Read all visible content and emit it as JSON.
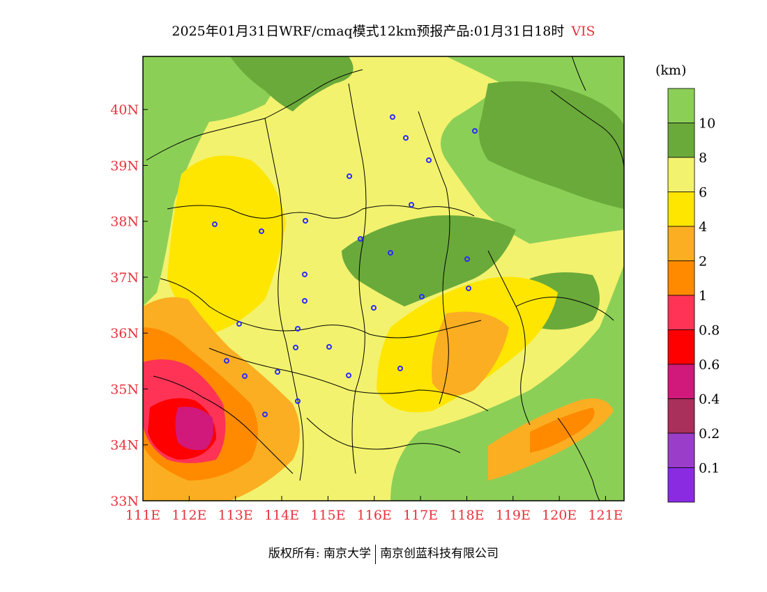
{
  "header": {
    "title": "2025年01月31日WRF/cmaq模式12km预报产品:01月31日18时",
    "variable": "VIS"
  },
  "map": {
    "lon_ticks": [
      "111E",
      "112E",
      "113E",
      "114E",
      "115E",
      "116E",
      "117E",
      "118E",
      "119E",
      "120E",
      "121E"
    ],
    "lat_ticks": [
      "33N",
      "34N",
      "35N",
      "36N",
      "37N",
      "38N",
      "39N",
      "40N"
    ],
    "lon_range": [
      111,
      121.4
    ],
    "lat_range": [
      33,
      40.95
    ]
  },
  "colorbar": {
    "unit": "(km)",
    "labels": [
      "10",
      "8",
      "6",
      "4",
      "2",
      "1",
      "0.8",
      "0.6",
      "0.4",
      "0.2",
      "0.1"
    ],
    "colors": [
      "#8ccf57",
      "#6aaa3a",
      "#f2f26e",
      "#ffe600",
      "#fbae22",
      "#ff8a00",
      "#ff3355",
      "#ff0000",
      "#d0197a",
      "#a8305a",
      "#9a3dc8",
      "#8a2be2"
    ]
  },
  "legend_colors": {
    "cat_vlow": "#ff0000",
    "cat_low": "#ff3355",
    "cat_1": "#ff8a00",
    "cat_2": "#fbae22",
    "cat_4": "#ffe600",
    "cat_6": "#f2f26e",
    "cat_8": "#6aaa3a",
    "cat_10": "#8ccf57"
  },
  "footer": {
    "left": "版权所有: 南京大学",
    "right": "南京创蓝科技有限公司"
  }
}
